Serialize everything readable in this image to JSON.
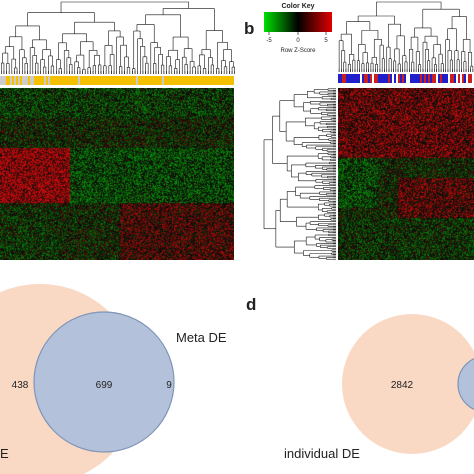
{
  "panel_b": {
    "letter": "b",
    "color_key": {
      "title": "Color Key",
      "ticks": [
        "-5",
        "0",
        "5"
      ],
      "xlabel": "Row Z-Score",
      "colors": {
        "low": "#00cc00",
        "mid": "#000000",
        "high": "#dd0000"
      }
    }
  },
  "panel_d": {
    "letter": "d"
  },
  "venn_c": {
    "set_labels": [
      "Meta DE",
      "E"
    ],
    "counts": {
      "left_only": "438",
      "overlap": "699",
      "right_only": "9"
    },
    "colors": {
      "big_circle": "#f9d9c4",
      "small_circle": "#b3c2da"
    }
  },
  "venn_d": {
    "set_labels": [
      "individual DE"
    ],
    "counts": {
      "left_only": "2842"
    },
    "colors": {
      "big_circle": "#f9d9c4",
      "small_circle": "#b3c2da"
    }
  },
  "heatmap_colors": {
    "green": "#1a7a1a",
    "black": "#000000",
    "red": "#a01010"
  },
  "annotation_bar_colors": {
    "panel_a": [
      "#f5c000",
      "#cccccc"
    ],
    "panel_b": [
      "#1f1fcc",
      "#cc1f1f",
      "#ffffff"
    ]
  }
}
